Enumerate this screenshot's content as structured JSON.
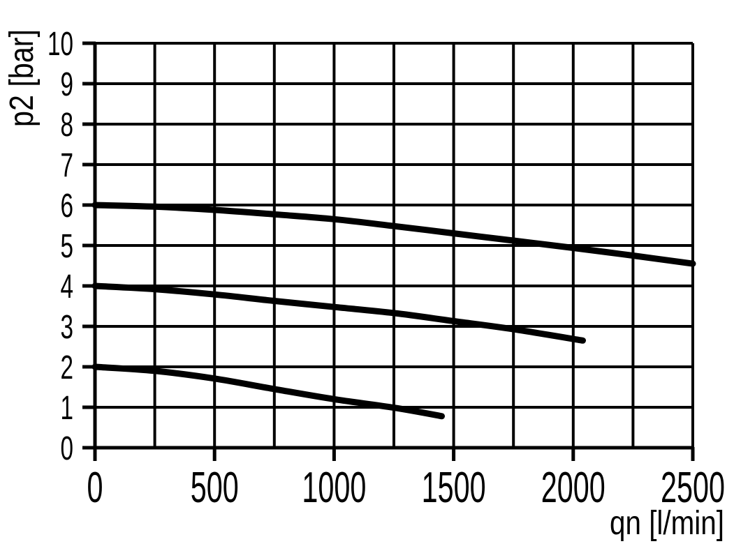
{
  "chart_data": {
    "type": "line",
    "title": "",
    "xlabel": "qn [l/min]",
    "ylabel": "p2 [bar]",
    "xlim": [
      0,
      2500
    ],
    "ylim": [
      0,
      10
    ],
    "x_tick_labels": [
      0,
      500,
      1000,
      1500,
      2000,
      2500
    ],
    "y_tick_labels": [
      0,
      1,
      2,
      3,
      4,
      5,
      6,
      7,
      8,
      9,
      10
    ],
    "x_grid_step": 250,
    "y_grid_step": 1,
    "grid": "on",
    "legend": "none",
    "line_color": "#000000",
    "grid_color": "#000000",
    "background_color": "#ffffff",
    "series": [
      {
        "x": [
          0,
          250,
          500,
          750,
          1000,
          1250,
          1500,
          1750,
          2000,
          2250,
          2500
        ],
        "y": [
          6.0,
          5.96,
          5.88,
          5.77,
          5.65,
          5.48,
          5.3,
          5.12,
          4.94,
          4.75,
          4.55
        ]
      },
      {
        "x": [
          0,
          250,
          500,
          750,
          1000,
          1250,
          1500,
          1750,
          2040
        ],
        "y": [
          4.0,
          3.92,
          3.79,
          3.63,
          3.48,
          3.33,
          3.13,
          2.93,
          2.65
        ]
      },
      {
        "x": [
          0,
          250,
          500,
          750,
          1000,
          1250,
          1450
        ],
        "y": [
          2.0,
          1.9,
          1.71,
          1.45,
          1.2,
          0.99,
          0.78
        ]
      }
    ]
  }
}
